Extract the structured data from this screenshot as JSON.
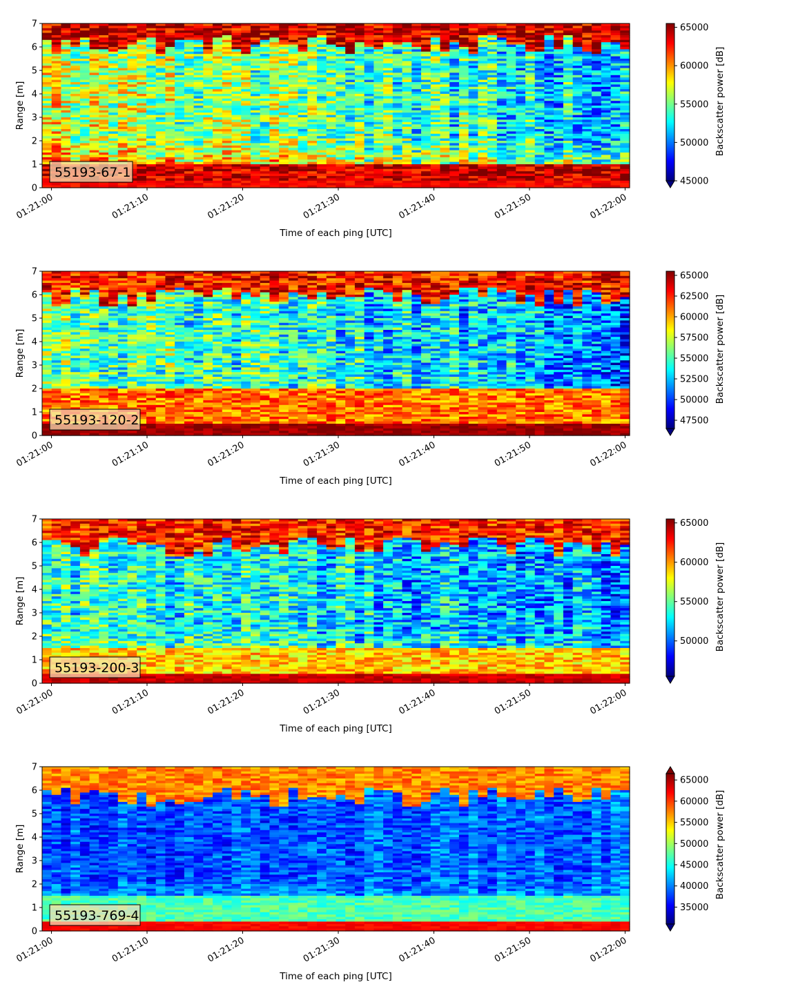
{
  "figure": {
    "colormap": "jet",
    "colors": {
      "jet": [
        "#00007f",
        "#0000ff",
        "#007fff",
        "#00ffff",
        "#7fff7f",
        "#ffff00",
        "#ff7f00",
        "#ff0000",
        "#7f0000"
      ],
      "axis": "#000000",
      "label_box": "#f5deb3"
    }
  },
  "chart_data": [
    {
      "type": "heatmap",
      "label": "55193-67-1",
      "xlabel": "Time of each ping [UTC]",
      "ylabel": "Range [m]",
      "x_ticks": [
        "01:21:00",
        "01:21:10",
        "01:21:20",
        "01:21:30",
        "01:21:40",
        "01:21:50",
        "01:22:00"
      ],
      "x_range": [
        "01:21:00",
        "01:22:00"
      ],
      "ylim": [
        0,
        7
      ],
      "y_ticks": [
        0,
        1,
        2,
        3,
        4,
        5,
        6,
        7
      ],
      "colorbar_label": "Backscatter power [dB]",
      "colorbar_ticks": [
        45000,
        50000,
        55000,
        60000,
        65000
      ],
      "vmin": 45000,
      "vmax": 65500,
      "colorbar_extend": "min",
      "profile": {
        "floor": 63000,
        "floor_top": 0.3,
        "floor_base": 63000,
        "strong_band_top": 1.0,
        "bottom_strong": 64000,
        "surface": 6.5,
        "surface_value": 64500,
        "mid_early": 57000,
        "mid_late": 52000,
        "noise": 5500
      }
    },
    {
      "type": "heatmap",
      "label": "55193-120-2",
      "xlabel": "Time of each ping [UTC]",
      "ylabel": "Range [m]",
      "x_ticks": [
        "01:21:00",
        "01:21:10",
        "01:21:20",
        "01:21:30",
        "01:21:40",
        "01:21:50",
        "01:22:00"
      ],
      "x_range": [
        "01:21:00",
        "01:22:00"
      ],
      "ylim": [
        0,
        7
      ],
      "y_ticks": [
        0,
        1,
        2,
        3,
        4,
        5,
        6,
        7
      ],
      "colorbar_label": "Backscatter power [dB]",
      "colorbar_ticks": [
        47500,
        50000,
        52500,
        55000,
        57500,
        60000,
        62500,
        65000
      ],
      "vmin": 46500,
      "vmax": 65500,
      "colorbar_extend": "min",
      "profile": {
        "floor": 65000,
        "floor_top": 0.5,
        "floor_base": 65000,
        "strong_band_top": 2.0,
        "bottom_strong": 61000,
        "surface": 6.3,
        "surface_value": 63500,
        "mid_early": 56000,
        "mid_late": 51500,
        "noise": 5000
      }
    },
    {
      "type": "heatmap",
      "label": "55193-200-3",
      "xlabel": "Time of each ping [UTC]",
      "ylabel": "Range [m]",
      "x_ticks": [
        "01:21:00",
        "01:21:10",
        "01:21:20",
        "01:21:30",
        "01:21:40",
        "01:21:50",
        "01:22:00"
      ],
      "x_range": [
        "01:21:00",
        "01:22:00"
      ],
      "ylim": [
        0,
        7
      ],
      "y_ticks": [
        0,
        1,
        2,
        3,
        4,
        5,
        6,
        7
      ],
      "colorbar_label": "Backscatter power [dB]",
      "colorbar_ticks": [
        50000,
        55000,
        60000,
        65000
      ],
      "vmin": 45500,
      "vmax": 65500,
      "colorbar_extend": "min",
      "profile": {
        "floor": 63500,
        "floor_top": 0.4,
        "floor_base": 64000,
        "strong_band_top": 1.5,
        "bottom_strong": 59000,
        "surface": 6.2,
        "surface_value": 63000,
        "mid_early": 54000,
        "mid_late": 51000,
        "noise": 5000
      }
    },
    {
      "type": "heatmap",
      "label": "55193-769-4",
      "xlabel": "Time of each ping [UTC]",
      "ylabel": "Range [m]",
      "x_ticks": [
        "01:21:00",
        "01:21:10",
        "01:21:20",
        "01:21:30",
        "01:21:40",
        "01:21:50",
        "01:22:00"
      ],
      "x_range": [
        "01:21:00",
        "01:22:00"
      ],
      "ylim": [
        0,
        7
      ],
      "y_ticks": [
        0,
        1,
        2,
        3,
        4,
        5,
        6,
        7
      ],
      "colorbar_label": "Backscatter power [dB]",
      "colorbar_ticks": [
        35000,
        40000,
        45000,
        50000,
        55000,
        60000,
        65000
      ],
      "vmin": 31000,
      "vmax": 66500,
      "colorbar_extend": "both",
      "profile": {
        "floor": 58000,
        "floor_top": 0.35,
        "floor_base": 62000,
        "strong_band_top": 1.5,
        "bottom_strong": 47000,
        "surface": 6.1,
        "surface_value": 58000,
        "mid_early": 38000,
        "mid_late": 39000,
        "noise": 5000
      }
    }
  ]
}
